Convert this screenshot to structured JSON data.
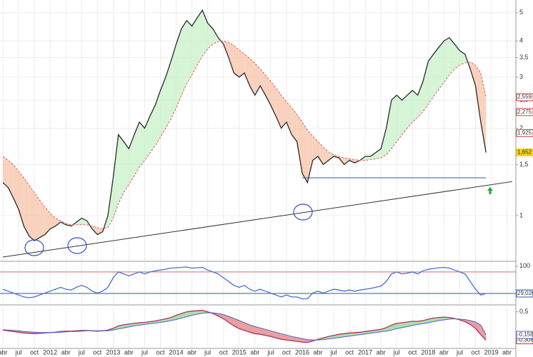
{
  "chart_data": [
    {
      "type": "line",
      "log": true,
      "grid": true,
      "x": [
        "2011-04",
        "2011-05",
        "2011-06",
        "2011-07",
        "2011-08",
        "2011-09",
        "2011-10",
        "2011-11",
        "2011-12",
        "2012-01",
        "2012-02",
        "2012-03",
        "2012-04",
        "2012-05",
        "2012-06",
        "2012-07",
        "2012-08",
        "2012-09",
        "2012-10",
        "2012-11",
        "2012-12",
        "2013-01",
        "2013-02",
        "2013-03",
        "2013-04",
        "2013-05",
        "2013-06",
        "2013-07",
        "2013-08",
        "2013-09",
        "2013-10",
        "2013-11",
        "2013-12",
        "2014-01",
        "2014-02",
        "2014-03",
        "2014-04",
        "2014-05",
        "2014-06",
        "2014-07",
        "2014-08",
        "2014-09",
        "2014-10",
        "2014-11",
        "2014-12",
        "2015-01",
        "2015-02",
        "2015-03",
        "2015-04",
        "2015-05",
        "2015-06",
        "2015-07",
        "2015-08",
        "2015-09",
        "2015-10",
        "2015-11",
        "2015-12",
        "2016-01",
        "2016-02",
        "2016-03",
        "2016-04",
        "2016-05",
        "2016-06",
        "2016-07",
        "2016-08",
        "2016-09",
        "2016-10",
        "2016-11",
        "2016-12",
        "2017-01",
        "2017-02",
        "2017-03",
        "2017-04",
        "2017-05",
        "2017-06",
        "2017-07",
        "2017-08",
        "2017-09",
        "2017-10",
        "2017-11",
        "2017-12",
        "2018-01",
        "2018-02",
        "2018-03",
        "2018-04",
        "2018-05",
        "2018-06",
        "2018-07",
        "2018-08",
        "2018-09",
        "2018-10",
        "2018-11",
        "2018-12"
      ],
      "xlim": [
        "2011-04",
        "2019-05"
      ],
      "xticks": [
        {
          "value": "2011-04",
          "label": "abr"
        },
        {
          "value": "2011-07",
          "label": "jul"
        },
        {
          "value": "2011-10",
          "label": "oct"
        },
        {
          "value": "2012-01",
          "label": "2012"
        },
        {
          "value": "2012-04",
          "label": "abr"
        },
        {
          "value": "2012-07",
          "label": "jul"
        },
        {
          "value": "2012-10",
          "label": "oct"
        },
        {
          "value": "2013-01",
          "label": "2013"
        },
        {
          "value": "2013-04",
          "label": "abr"
        },
        {
          "value": "2013-07",
          "label": "jul"
        },
        {
          "value": "2013-10",
          "label": "oct"
        },
        {
          "value": "2014-01",
          "label": "2014"
        },
        {
          "value": "2014-04",
          "label": "abr"
        },
        {
          "value": "2014-07",
          "label": "jul"
        },
        {
          "value": "2014-10",
          "label": "oct"
        },
        {
          "value": "2015-01",
          "label": "2015"
        },
        {
          "value": "2015-04",
          "label": "abr"
        },
        {
          "value": "2015-07",
          "label": "jul"
        },
        {
          "value": "2015-10",
          "label": "oct"
        },
        {
          "value": "2016-01",
          "label": "2016"
        },
        {
          "value": "2016-04",
          "label": "abr"
        },
        {
          "value": "2016-07",
          "label": "jul"
        },
        {
          "value": "2016-10",
          "label": "oct"
        },
        {
          "value": "2017-01",
          "label": "2017"
        },
        {
          "value": "2017-04",
          "label": "abr"
        },
        {
          "value": "2017-07",
          "label": "jul"
        },
        {
          "value": "2017-10",
          "label": "oct"
        },
        {
          "value": "2018-01",
          "label": "2018"
        },
        {
          "value": "2018-04",
          "label": "abr"
        },
        {
          "value": "2018-07",
          "label": "jul"
        },
        {
          "value": "2018-10",
          "label": "oct"
        },
        {
          "value": "2019-01",
          "label": "2019"
        },
        {
          "value": "2019-04",
          "label": "abr"
        }
      ],
      "ylim": [
        0.7,
        5.53
      ],
      "yticks": [
        1,
        {
          "value": 1.5,
          "label": "1,5"
        },
        2,
        {
          "value": 2.5,
          "label": "2,5"
        },
        3,
        {
          "value": 3.5,
          "label": "3,5"
        },
        4,
        5
      ],
      "series": [
        {
          "color": "#2b2b2b",
          "values": [
            1.3,
            1.25,
            1.15,
            1.05,
            0.92,
            0.85,
            0.82,
            0.84,
            0.86,
            0.9,
            0.92,
            0.95,
            0.93,
            0.92,
            0.95,
            0.98,
            0.96,
            0.9,
            0.86,
            0.88,
            1.0,
            1.35,
            1.9,
            1.8,
            1.7,
            1.9,
            2.1,
            2.0,
            2.2,
            2.4,
            2.7,
            3.0,
            3.4,
            3.9,
            4.4,
            4.7,
            4.5,
            4.8,
            5.1,
            4.6,
            4.4,
            4.1,
            3.9,
            3.5,
            3.1,
            3.0,
            3.1,
            2.8,
            2.6,
            2.8,
            2.6,
            2.4,
            2.2,
            2.0,
            2.1,
            1.9,
            1.8,
            1.4,
            1.3,
            1.55,
            1.6,
            1.5,
            1.55,
            1.6,
            1.58,
            1.5,
            1.55,
            1.52,
            1.55,
            1.6,
            1.6,
            1.65,
            1.7,
            2.0,
            2.5,
            2.6,
            2.5,
            2.6,
            2.7,
            2.6,
            2.9,
            3.4,
            3.6,
            3.8,
            4.0,
            4.1,
            3.9,
            3.7,
            3.6,
            3.2,
            2.8,
            2.1,
            1.65
          ]
        },
        {
          "color": "#e06060",
          "dashed": true,
          "values": [
            1.6,
            1.55,
            1.5,
            1.42,
            1.35,
            1.27,
            1.2,
            1.13,
            1.07,
            1.02,
            0.98,
            0.96,
            0.94,
            0.93,
            0.93,
            0.93,
            0.93,
            0.92,
            0.91,
            0.9,
            0.91,
            0.98,
            1.1,
            1.2,
            1.28,
            1.37,
            1.47,
            1.55,
            1.64,
            1.74,
            1.86,
            2.0,
            2.15,
            2.35,
            2.6,
            2.85,
            3.05,
            3.3,
            3.55,
            3.75,
            3.9,
            3.98,
            4.0,
            3.95,
            3.85,
            3.72,
            3.6,
            3.48,
            3.35,
            3.2,
            3.05,
            2.9,
            2.75,
            2.6,
            2.47,
            2.35,
            2.23,
            2.1,
            1.97,
            1.88,
            1.8,
            1.72,
            1.66,
            1.62,
            1.6,
            1.58,
            1.57,
            1.56,
            1.55,
            1.55,
            1.56,
            1.57,
            1.58,
            1.62,
            1.7,
            1.8,
            1.9,
            2.0,
            2.1,
            2.18,
            2.28,
            2.42,
            2.57,
            2.72,
            2.88,
            3.05,
            3.2,
            3.3,
            3.36,
            3.38,
            3.3,
            3.1,
            2.56
          ]
        },
        {
          "color": "#333333",
          "x": [
            "2011-04",
            "2019-05"
          ],
          "values": [
            0.72,
            1.31
          ]
        },
        {
          "color": "#3355aa",
          "x": [
            "2016-01",
            "2018-12"
          ],
          "values": [
            1.35,
            1.35
          ]
        }
      ],
      "fill_up": "#c8f0c8",
      "fill_down": "#f7c3a8",
      "price_labels": [
        {
          "value": 2.559,
          "label": "2,559",
          "color": "#d04040"
        },
        {
          "value": 2.275,
          "label": "2,275",
          "color": "#d04040"
        },
        {
          "value": 1.925,
          "label": "1,925",
          "color": "#d04040"
        },
        {
          "value": 1.652,
          "label": "1,652",
          "color": "#222222",
          "background": "#f2d21b"
        }
      ]
    },
    {
      "type": "line",
      "ylim": [
        3,
        109
      ],
      "yticks": [
        100
      ],
      "series": [
        {
          "color": "#4a6fd0",
          "values": [
            40,
            35,
            30,
            25,
            20,
            18,
            20,
            25,
            30,
            35,
            40,
            45,
            40,
            38,
            45,
            50,
            45,
            35,
            30,
            35,
            45,
            70,
            85,
            80,
            75,
            80,
            85,
            80,
            85,
            88,
            90,
            92,
            95,
            96,
            97,
            98,
            95,
            96,
            97,
            90,
            85,
            80,
            70,
            60,
            50,
            45,
            50,
            40,
            35,
            40,
            35,
            30,
            25,
            20,
            25,
            20,
            20,
            15,
            15,
            30,
            35,
            30,
            35,
            40,
            38,
            35,
            38,
            35,
            38,
            40,
            42,
            45,
            48,
            60,
            80,
            85,
            80,
            82,
            85,
            80,
            88,
            92,
            94,
            96,
            97,
            95,
            90,
            85,
            80,
            60,
            40,
            25,
            29.026
          ]
        }
      ],
      "levels": [
        {
          "value": 85,
          "color": "#e06666"
        },
        {
          "value": 29.026,
          "label": "29,026",
          "color": "#3355aa"
        }
      ]
    },
    {
      "type": "line",
      "ylim": [
        -0.52,
        0.635
      ],
      "yticks": [
        {
          "value": 0.5,
          "label": "0,5"
        }
      ],
      "fill_up": "#8fd68f",
      "fill_down": "#e08080",
      "series": [
        {
          "color": "#b03060",
          "end_label": "-0,308",
          "values": [
            -0.02,
            -0.04,
            -0.06,
            -0.08,
            -0.1,
            -0.11,
            -0.12,
            -0.11,
            -0.1,
            -0.09,
            -0.08,
            -0.06,
            -0.05,
            -0.05,
            -0.04,
            -0.03,
            -0.03,
            -0.04,
            -0.05,
            -0.04,
            -0.02,
            0.03,
            0.1,
            0.13,
            0.15,
            0.17,
            0.19,
            0.2,
            0.22,
            0.24,
            0.27,
            0.3,
            0.34,
            0.4,
            0.45,
            0.5,
            0.52,
            0.53,
            0.54,
            0.5,
            0.45,
            0.38,
            0.3,
            0.2,
            0.1,
            0.02,
            -0.03,
            -0.08,
            -0.12,
            -0.14,
            -0.17,
            -0.2,
            -0.24,
            -0.28,
            -0.3,
            -0.32,
            -0.34,
            -0.36,
            -0.37,
            -0.33,
            -0.28,
            -0.24,
            -0.2,
            -0.17,
            -0.14,
            -0.12,
            -0.1,
            -0.09,
            -0.08,
            -0.06,
            -0.04,
            -0.02,
            0,
            0.05,
            0.12,
            0.17,
            0.19,
            0.21,
            0.23,
            0.23,
            0.25,
            0.29,
            0.32,
            0.34,
            0.35,
            0.34,
            0.31,
            0.27,
            0.22,
            0.14,
            0.03,
            -0.15,
            -0.308
          ]
        },
        {
          "color": "#5560c0",
          "end_label": "-0,156",
          "values": [
            -0.01,
            -0.02,
            -0.03,
            -0.04,
            -0.06,
            -0.07,
            -0.08,
            -0.09,
            -0.09,
            -0.09,
            -0.09,
            -0.08,
            -0.07,
            -0.06,
            -0.06,
            -0.05,
            -0.04,
            -0.04,
            -0.04,
            -0.04,
            -0.04,
            -0.02,
            0.01,
            0.04,
            0.07,
            0.1,
            0.12,
            0.14,
            0.16,
            0.18,
            0.2,
            0.22,
            0.25,
            0.28,
            0.32,
            0.36,
            0.4,
            0.43,
            0.46,
            0.47,
            0.47,
            0.45,
            0.42,
            0.37,
            0.31,
            0.25,
            0.19,
            0.13,
            0.08,
            0.04,
            0,
            -0.04,
            -0.08,
            -0.12,
            -0.16,
            -0.2,
            -0.23,
            -0.26,
            -0.29,
            -0.3,
            -0.3,
            -0.29,
            -0.27,
            -0.25,
            -0.23,
            -0.21,
            -0.19,
            -0.17,
            -0.15,
            -0.13,
            -0.11,
            -0.09,
            -0.07,
            -0.05,
            -0.02,
            0.02,
            0.05,
            0.08,
            0.11,
            0.14,
            0.16,
            0.19,
            0.22,
            0.25,
            0.27,
            0.29,
            0.3,
            0.29,
            0.28,
            0.25,
            0.21,
            0.12,
            -0.156
          ]
        }
      ]
    }
  ]
}
